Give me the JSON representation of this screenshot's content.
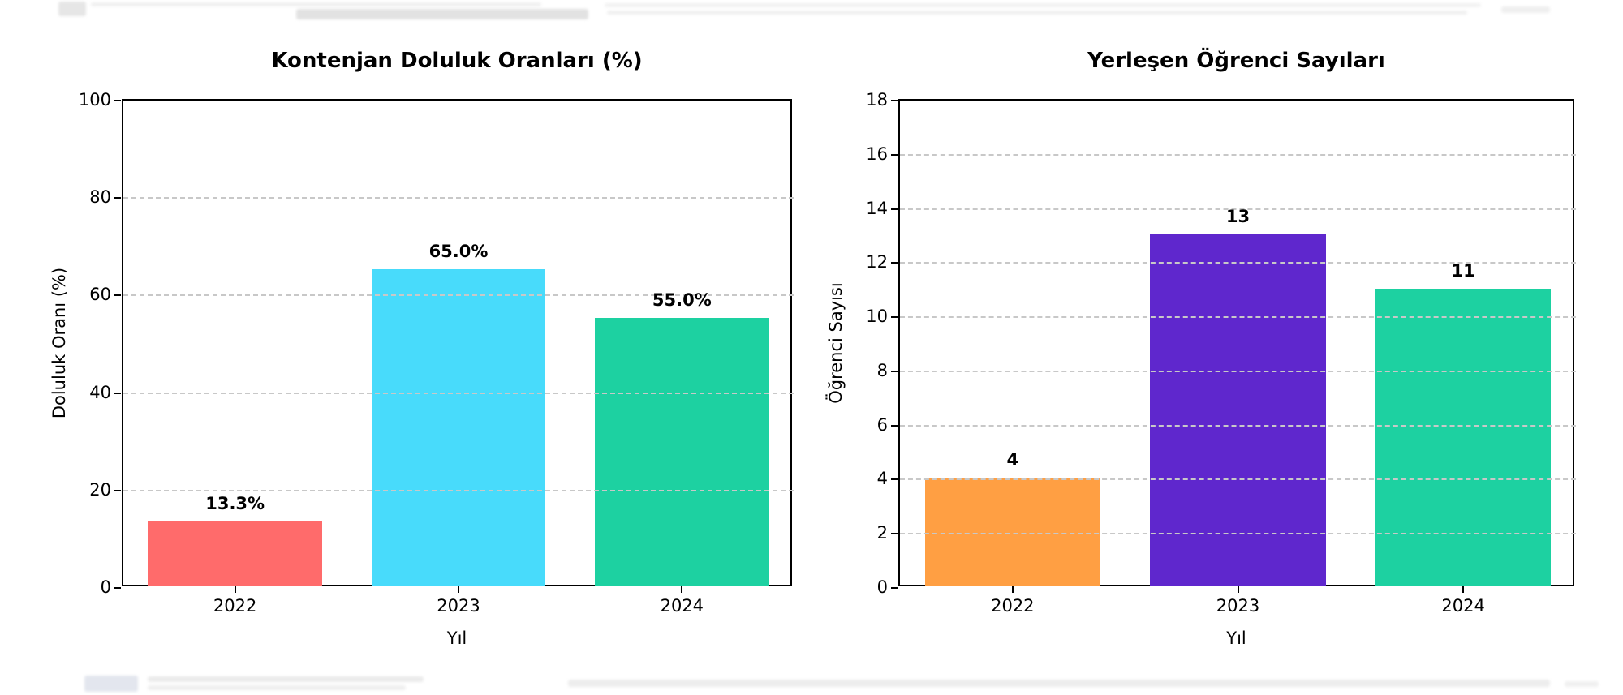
{
  "figure": {
    "background": "#ffffff",
    "spine_color": "#000000",
    "grid_color": "#c8c8c8"
  },
  "chart_data": [
    {
      "type": "bar",
      "title": "Kontenjan Doluluk Oranları (%)",
      "xlabel": "Yıl",
      "ylabel": "Doluluk Oranı (%)",
      "categories": [
        "2022",
        "2023",
        "2024"
      ],
      "values": [
        13.3,
        65.0,
        55.0
      ],
      "value_labels": [
        "13.3%",
        "65.0%",
        "55.0%"
      ],
      "bar_colors": [
        "#ff6b6b",
        "#48dbfb",
        "#1dd1a1"
      ],
      "ylim": [
        0,
        100
      ],
      "yticks": [
        0,
        20,
        40,
        60,
        80,
        100
      ],
      "grid": "dashed-horizontal",
      "legend": "none"
    },
    {
      "type": "bar",
      "title": "Yerleşen Öğrenci Sayıları",
      "xlabel": "Yıl",
      "ylabel": "Öğrenci Sayısı",
      "categories": [
        "2022",
        "2023",
        "2024"
      ],
      "values": [
        4,
        13,
        11
      ],
      "value_labels": [
        "4",
        "13",
        "11"
      ],
      "bar_colors": [
        "#ff9f43",
        "#5f27cd",
        "#1dd1a1"
      ],
      "ylim": [
        0,
        18
      ],
      "yticks": [
        0,
        2,
        4,
        6,
        8,
        10,
        12,
        14,
        16,
        18
      ],
      "grid": "dashed-horizontal",
      "legend": "none"
    }
  ]
}
